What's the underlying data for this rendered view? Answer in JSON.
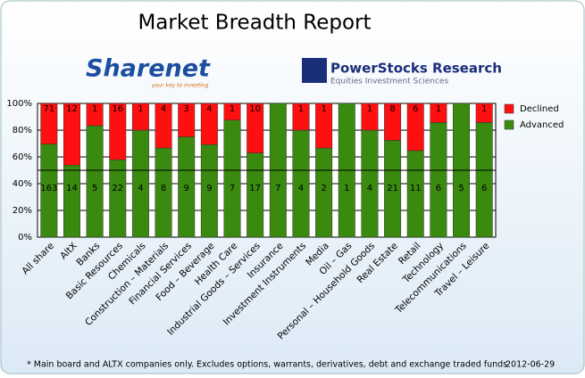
{
  "chart_data": {
    "type": "bar",
    "stacked": "percent",
    "title": "Market Breadth Report",
    "logos": {
      "sharenet": "Sharenet",
      "sharenet_tagline": "your key to investing",
      "powerstocks": "PowerStocks  Research",
      "powerstocks_tagline": "Equities Investment Sciences"
    },
    "categories": [
      "All share",
      "AltX",
      "Banks",
      "Basic Resources",
      "Chemicals",
      "Construction – Materials",
      "Financial Services",
      "Food – Beverage",
      "Health Care",
      "Industrial Goods – Services",
      "Insurance",
      "Investment Instruments",
      "Media",
      "Oil – Gas",
      "Personal – Household Goods",
      "Real Estate",
      "Retail",
      "Technology",
      "Telecommunications",
      "Travel – Leisure"
    ],
    "series": [
      {
        "name": "Advanced",
        "color": "#3a8a10",
        "values": [
          163,
          14,
          5,
          22,
          4,
          8,
          9,
          9,
          7,
          17,
          7,
          4,
          2,
          1,
          4,
          21,
          11,
          6,
          5,
          6
        ]
      },
      {
        "name": "Declined",
        "color": "#ff1010",
        "values": [
          71,
          12,
          1,
          16,
          1,
          4,
          3,
          4,
          1,
          10,
          0,
          1,
          1,
          0,
          1,
          8,
          6,
          1,
          0,
          1
        ]
      }
    ],
    "ylim": [
      0,
      100
    ],
    "yticks": [
      {
        "value": 0,
        "label": "0%"
      },
      {
        "value": 20,
        "label": "20%"
      },
      {
        "value": 40,
        "label": "40%"
      },
      {
        "value": 60,
        "label": "60%"
      },
      {
        "value": 80,
        "label": "80%"
      },
      {
        "value": 100,
        "label": "100%"
      }
    ],
    "grid": true,
    "reference_line": 50,
    "legend": "right",
    "footnote": "* Main board and ALTX companies only. Excludes options, warrants, derivatives, debt and exchange traded funds",
    "date": "2012-06-29"
  }
}
